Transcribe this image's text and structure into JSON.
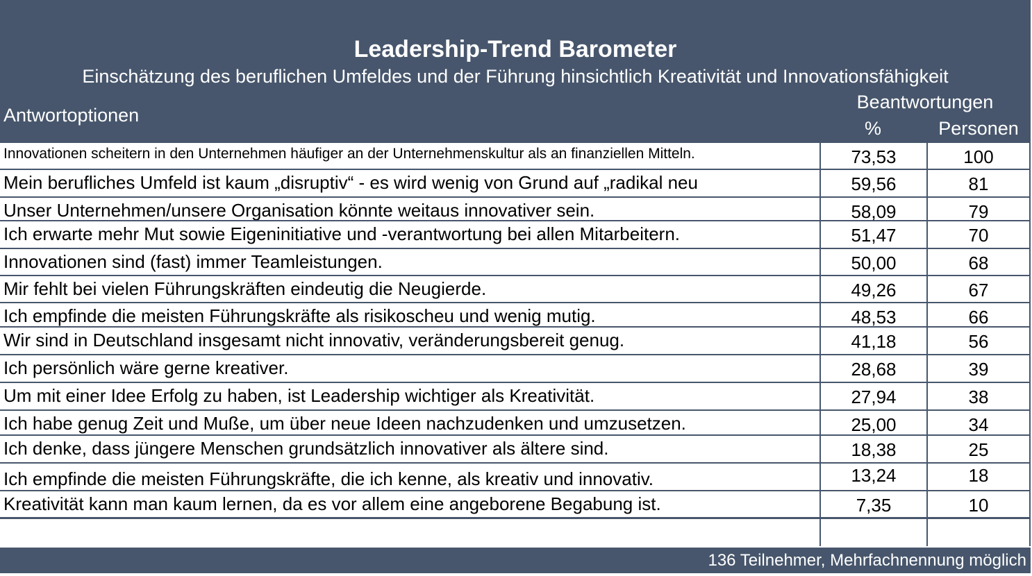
{
  "header": {
    "title": "Leadership-Trend Barometer",
    "subtitle": "Einschätzung des beruflichen Umfeldes und der Führung hinsichtlich Kreativität und Innovationsfähigkeit",
    "col_options": "Antwortoptionen",
    "col_answers": "Beantwortungen",
    "col_percent": "%",
    "col_persons": "Personen"
  },
  "rows": [
    {
      "text": "Innovationen scheitern in den Unternehmen häufiger an der Unternehmenskultur als an finanziellen Mitteln.",
      "pct": "73,53",
      "persons": "100"
    },
    {
      "text": "Mein berufliches Umfeld ist kaum „disruptiv“ - es wird wenig von Grund auf „radikal neu",
      "pct": "59,56",
      "persons": "81"
    },
    {
      "text": "Unser Unternehmen/unsere Organisation könnte weitaus innovativer sein.",
      "pct": "58,09",
      "persons": "79"
    },
    {
      "text": "Ich erwarte mehr Mut sowie Eigeninitiative und -verantwortung bei allen Mitarbeitern.",
      "pct": "51,47",
      "persons": "70"
    },
    {
      "text": "Innovationen sind (fast) immer Teamleistungen.",
      "pct": "50,00",
      "persons": "68"
    },
    {
      "text": "Mir fehlt bei vielen Führungskräften eindeutig die Neugierde.",
      "pct": "49,26",
      "persons": "67"
    },
    {
      "text": "Ich empfinde die meisten Führungskräfte als risikoscheu und wenig mutig.",
      "pct": "48,53",
      "persons": "66"
    },
    {
      "text": "Wir sind in Deutschland insgesamt nicht innovativ, veränderungsbereit genug.",
      "pct": "41,18",
      "persons": "56"
    },
    {
      "text": "Ich persönlich wäre gerne kreativer.",
      "pct": "28,68",
      "persons": "39"
    },
    {
      "text": "Um mit einer Idee Erfolg zu haben, ist Leadership wichtiger als Kreativität.",
      "pct": "27,94",
      "persons": "38"
    },
    {
      "text": "Ich habe genug Zeit und Muße, um über neue Ideen nachzudenken und umzusetzen.",
      "pct": "25,00",
      "persons": "34"
    },
    {
      "text": "Ich denke, dass jüngere Menschen grundsätzlich innovativer als ältere sind.",
      "pct": "18,38",
      "persons": "25"
    },
    {
      "text": "Ich empfinde die meisten Führungskräfte, die ich kenne, als kreativ und innovativ.",
      "pct": "13,24",
      "persons": "18"
    },
    {
      "text": "Kreativität kann man kaum lernen, da es vor allem eine angeborene Begabung ist.",
      "pct": "7,35",
      "persons": "10"
    }
  ],
  "footer": {
    "note": "136 Teilnehmer, Mehrfachnennung möglich"
  }
}
